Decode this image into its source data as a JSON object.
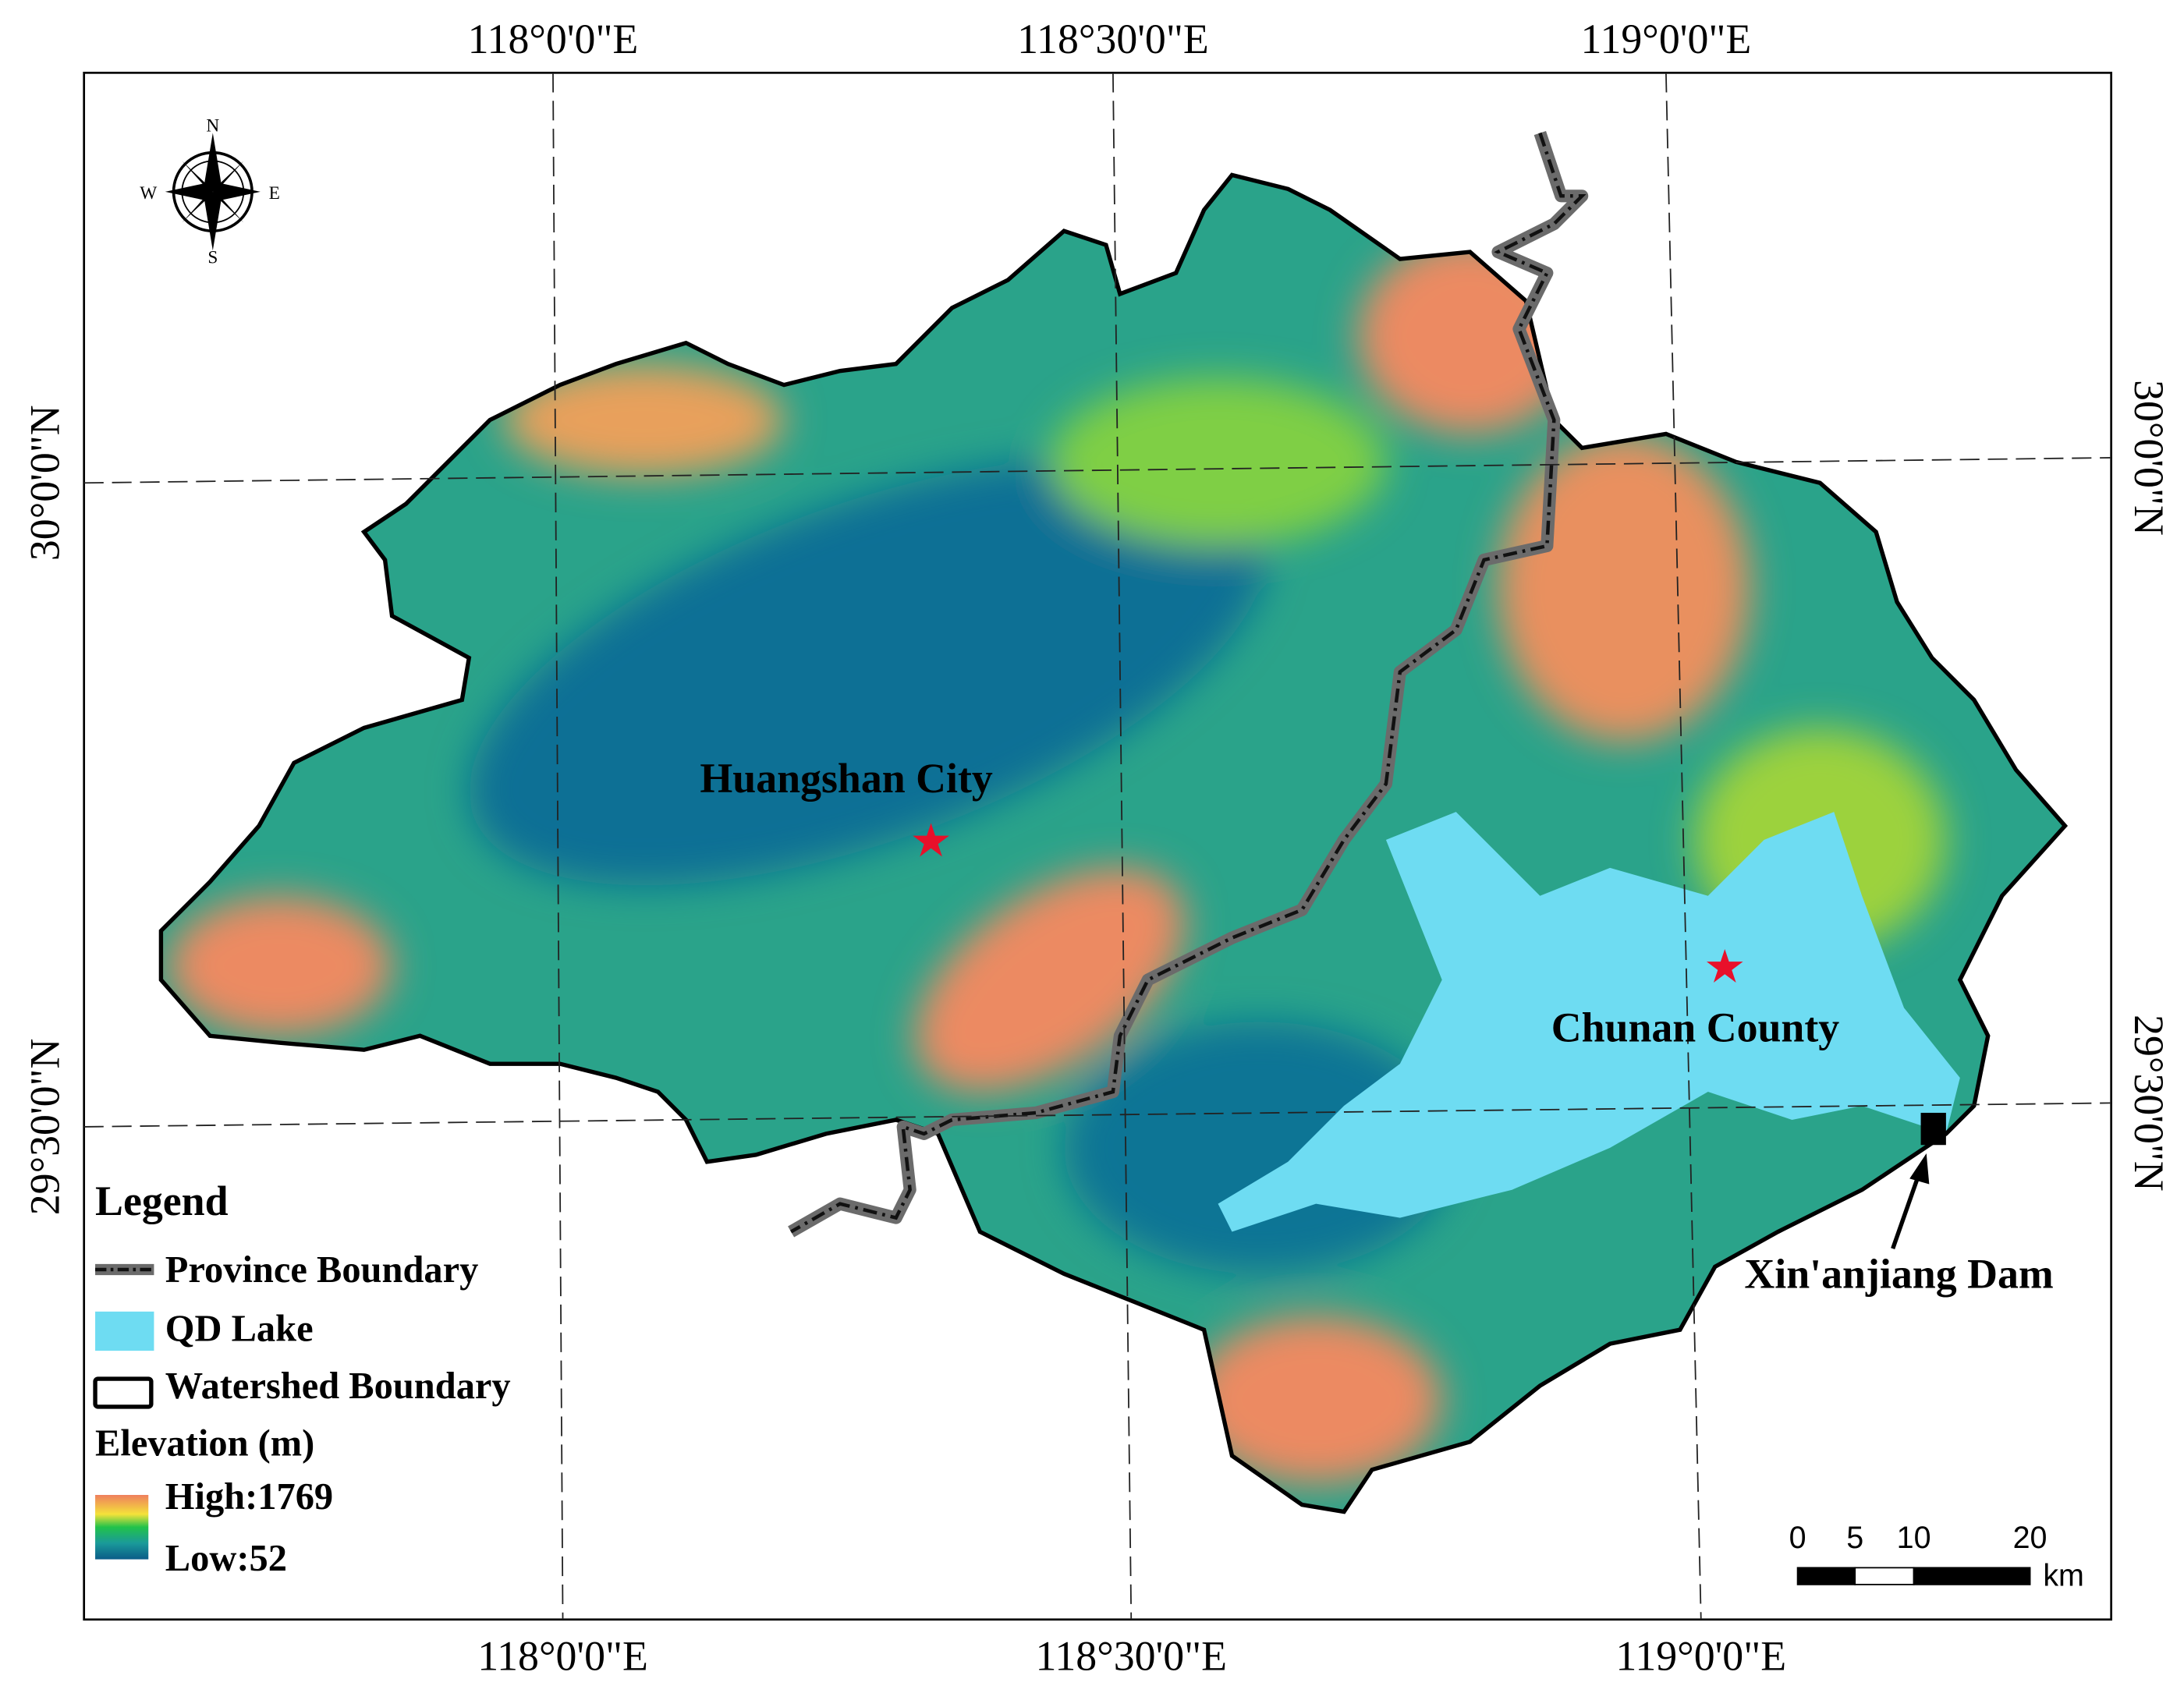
{
  "top_labels": [
    "118°0'0\"E",
    "118°30'0\"E",
    "119°0'0\"E"
  ],
  "bottom_labels": [
    "118°0'0\"E",
    "118°30'0\"E",
    "119°0'0\"E"
  ],
  "left_labels": [
    "30°0'0\"N",
    "29°30'0\"N"
  ],
  "right_labels": [
    "30°0'0\"N",
    "29°30'0\"N"
  ],
  "compass": {
    "n": "N",
    "e": "E",
    "s": "S",
    "w": "W"
  },
  "places": [
    "Huangshan City",
    "Chunan County",
    "Xin'anjiang Dam"
  ],
  "legend": {
    "title": "Legend",
    "items": [
      "Province Boundary",
      "QD Lake",
      "Watershed Boundary"
    ],
    "elevation_title": "Elevation (m)",
    "high": "High:1769",
    "low": "Low:52"
  },
  "scale_bar": {
    "ticks": [
      "0",
      "5",
      "10",
      "20"
    ],
    "unit": "km"
  }
}
